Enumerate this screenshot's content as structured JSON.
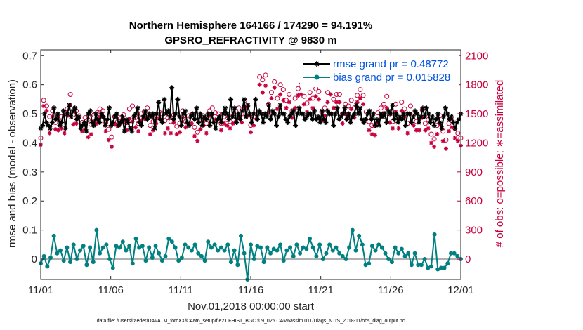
{
  "chart_data": {
    "type": "line",
    "title": "Northern Hemisphere 164166 / 174290 = 94.191%",
    "subtitle": "GPSRO_REFRACTIVITY @ 9830 m",
    "xlabel": "Nov.01,2018 00:00:00 start",
    "ylabel": "rmse and bias (model - observation)",
    "ylabel_right": "# of obs: o=possible; ∗=assimilated",
    "xlim": [
      0,
      30
    ],
    "ylim": [
      -0.07,
      0.72
    ],
    "ylim_right": [
      -210,
      2160
    ],
    "x_tick_values": [
      0,
      5,
      10,
      15,
      20,
      25,
      30
    ],
    "x_tick_labels": [
      "11/01",
      "11/06",
      "11/11",
      "11/16",
      "11/21",
      "11/26",
      "12/01"
    ],
    "y_ticks": [
      0,
      0.1,
      0.2,
      0.3,
      0.4,
      0.5,
      0.6,
      0.7
    ],
    "y_tick_labels": [
      "0",
      "0.1",
      "0.2",
      "0.3",
      "0.4",
      "0.5",
      "0.6",
      "0.7"
    ],
    "y_ticks_right": [
      0,
      300,
      600,
      900,
      1200,
      1500,
      1800,
      2100
    ],
    "y_tick_labels_right": [
      "0",
      "300",
      "600",
      "900",
      "1200",
      "1500",
      "1800",
      "2100"
    ],
    "footnote": "data file: /Users/raeder/DAI/ATM_forcXX/CAM6_setup/f.e21.FHIST_BGC.f09_025.CAM6assim.011/Diags_NTrS_2018-11/obs_diag_output.nc",
    "colors": {
      "rmse": "#000000",
      "bias": "#008080",
      "obs": "#c8003c",
      "zero_line": "#b0b0b0",
      "legend_text": "#0052e0"
    },
    "series": [
      {
        "name": "rmse grand pr = 0.48772",
        "axis": "left",
        "values": [
          0.45,
          0.46,
          0.5,
          0.47,
          0.46,
          0.45,
          0.47,
          0.52,
          0.48,
          0.5,
          0.46,
          0.47,
          0.51,
          0.45,
          0.5,
          0.53,
          0.49,
          0.51,
          0.52,
          0.48,
          0.49,
          0.45,
          0.46,
          0.47,
          0.44,
          0.5,
          0.51,
          0.47,
          0.46,
          0.5,
          0.48,
          0.47,
          0.5,
          0.49,
          0.46,
          0.48,
          0.52,
          0.46,
          0.47,
          0.49,
          0.5,
          0.46,
          0.47,
          0.49,
          0.44,
          0.48,
          0.47,
          0.45,
          0.44,
          0.49,
          0.5,
          0.52,
          0.47,
          0.46,
          0.49,
          0.51,
          0.48,
          0.5,
          0.49,
          0.5,
          0.45,
          0.5,
          0.54,
          0.48,
          0.47,
          0.55,
          0.5,
          0.51,
          0.49,
          0.59,
          0.48,
          0.5,
          0.55,
          0.49,
          0.46,
          0.5,
          0.51,
          0.47,
          0.46,
          0.49,
          0.5,
          0.48,
          0.52,
          0.47,
          0.5,
          0.46,
          0.49,
          0.48,
          0.5,
          0.46,
          0.5,
          0.47,
          0.45,
          0.48,
          0.49,
          0.47,
          0.5,
          0.52,
          0.5,
          0.48,
          0.55,
          0.49,
          0.52,
          0.47,
          0.5,
          0.48,
          0.51,
          0.55,
          0.49,
          0.53,
          0.5,
          0.47,
          0.5,
          0.55,
          0.48,
          0.51,
          0.5,
          0.47,
          0.5,
          0.49,
          0.53,
          0.48,
          0.51,
          0.5,
          0.46,
          0.49,
          0.53,
          0.5,
          0.5,
          0.48,
          0.47,
          0.49,
          0.5,
          0.51,
          0.46,
          0.5,
          0.52,
          0.5,
          0.5,
          0.48,
          0.49,
          0.5,
          0.5,
          0.48,
          0.51,
          0.48,
          0.49,
          0.47,
          0.51,
          0.48,
          0.47,
          0.51,
          0.5,
          0.5,
          0.46,
          0.5,
          0.52,
          0.48,
          0.49,
          0.5,
          0.52,
          0.48,
          0.5,
          0.47,
          0.49,
          0.5,
          0.53,
          0.5,
          0.52,
          0.48,
          0.47,
          0.48,
          0.5,
          0.51,
          0.48,
          0.5,
          0.46,
          0.48,
          0.46,
          0.5,
          0.49,
          0.5,
          0.47,
          0.51,
          0.5,
          0.53,
          0.48,
          0.5,
          0.47,
          0.49,
          0.48,
          0.5,
          0.46,
          0.5,
          0.5,
          0.47,
          0.49,
          0.51,
          0.5,
          0.47,
          0.49,
          0.52,
          0.49,
          0.52,
          0.5,
          0.47,
          0.49,
          0.46,
          0.48,
          0.5,
          0.47,
          0.45,
          0.49,
          0.52,
          0.5,
          0.48,
          0.49,
          0.47,
          0.45,
          0.47,
          0.48,
          0.5
        ]
      },
      {
        "name": "bias grand pr = 0.015828",
        "axis": "left",
        "values": [
          -0.015,
          0.01,
          -0.025,
          0.005,
          0.08,
          0.02,
          0.03,
          -0.005,
          0.04,
          -0.01,
          0.05,
          0.0,
          0.03,
          0.045,
          -0.02,
          0.04,
          -0.01,
          0.1,
          0.02,
          0.04,
          0.05,
          0.0,
          -0.03,
          0.045,
          0.04,
          0.06,
          0.03,
          0.045,
          -0.015,
          0.07,
          0.04,
          0.045,
          -0.005,
          0.04,
          0.005,
          0.045,
          0.02,
          -0.005,
          0.01,
          0.07,
          0.06,
          0.04,
          -0.005,
          0.005,
          0.05,
          0.04,
          0.03,
          0.05,
          0.02,
          0.01,
          -0.005,
          0.06,
          0.04,
          0.05,
          0.03,
          0.04,
          0.03,
          0.05,
          -0.01,
          0.03,
          -0.02,
          0.08,
          0.02,
          -0.07,
          0.05,
          0.0,
          0.045,
          0.04,
          -0.01,
          0.04,
          0.02,
          0.035,
          0.03,
          0.05,
          -0.005,
          0.03,
          0.04,
          0.01,
          0.05,
          0.02,
          0.04,
          0.035,
          0.07,
          0.04,
          0.01,
          0.05,
          0.0,
          0.02,
          0.05,
          0.03,
          0.04,
          0.02,
          0.01,
          0.0,
          0.04,
          0.1,
          0.03,
          0.08,
          0.05,
          -0.02,
          -0.015,
          0.045,
          0.03,
          0.05,
          0.04,
          0.02,
          0.0,
          -0.01,
          0.04,
          0.02,
          0.035,
          0.01,
          0.02,
          -0.02,
          0.02,
          -0.02,
          -0.02,
          0.0,
          -0.03,
          -0.025,
          0.085,
          -0.035,
          -0.03,
          -0.03,
          -0.015,
          0.02,
          0.02,
          0.01,
          0.0
        ]
      },
      {
        "name": "# of obs possible",
        "axis": "right",
        "marker": "o",
        "values": [
          1250,
          1640,
          1580,
          1470,
          1530,
          1410,
          1440,
          1470,
          1520,
          1550,
          1700,
          1490,
          1530,
          1480,
          1410,
          1460,
          1440,
          1390,
          1490,
          1510,
          1550,
          1530,
          1410,
          1340,
          1260,
          1470,
          1420,
          1460,
          1490,
          1410,
          1550,
          1580,
          1460,
          1400,
          1500,
          1520,
          1560,
          1380,
          1420,
          1480,
          1520,
          1500,
          1430,
          1460,
          1420,
          1490,
          1370,
          1400,
          1530,
          1420,
          1480,
          1490,
          1360,
          1310,
          1440,
          1480,
          1400,
          1530,
          1560,
          1510,
          1500,
          1400,
          1470,
          1440,
          1420,
          1480,
          1520,
          1560,
          1500,
          1640,
          1580,
          1380,
          1470,
          1500,
          1880,
          1850,
          1900,
          1600,
          1720,
          1830,
          1660,
          1800,
          1750,
          1640,
          1700,
          1530,
          1660,
          1760,
          1800,
          1680,
          1610,
          1720,
          1660,
          1760,
          1730,
          1520,
          1560,
          1720,
          1800,
          1650,
          1700,
          1700,
          1500,
          1600,
          1580,
          1640,
          1560,
          1690,
          1750,
          1690,
          1520,
          1420,
          1380,
          1380,
          1510,
          1560,
          1600,
          1680,
          1500,
          1420,
          1600,
          1450,
          1620,
          1550,
          1400,
          1580,
          1500,
          1420,
          1450,
          1540,
          1400,
          1440,
          1290,
          1240,
          1380,
          1480,
          1320,
          1230,
          1400,
          1450,
          1350,
          1300,
          1250
        ]
      },
      {
        "name": "# of obs assimilated",
        "axis": "right",
        "marker": "*",
        "values": [
          1180,
          1580,
          1530,
          1300,
          1470,
          1340,
          1330,
          1350,
          1300,
          1480,
          1590,
          1390,
          1400,
          1460,
          1320,
          1340,
          1260,
          1290,
          1420,
          1400,
          1470,
          1470,
          1320,
          1230,
          1160,
          1390,
          1370,
          1400,
          1430,
          1330,
          1450,
          1420,
          1360,
          1320,
          1430,
          1450,
          1460,
          1290,
          1330,
          1400,
          1450,
          1440,
          1300,
          1350,
          1300,
          1410,
          1290,
          1310,
          1460,
          1360,
          1390,
          1400,
          1270,
          1220,
          1340,
          1380,
          1300,
          1480,
          1500,
          1440,
          1440,
          1330,
          1400,
          1380,
          1350,
          1400,
          1420,
          1460,
          1410,
          1560,
          1480,
          1310,
          1380,
          1440,
          1800,
          1720,
          1790,
          1510,
          1660,
          1770,
          1550,
          1700,
          1640,
          1560,
          1620,
          1460,
          1560,
          1690,
          1700,
          1600,
          1520,
          1650,
          1560,
          1680,
          1650,
          1430,
          1480,
          1620,
          1700,
          1560,
          1620,
          1620,
          1400,
          1500,
          1470,
          1550,
          1460,
          1620,
          1660,
          1600,
          1440,
          1330,
          1290,
          1280,
          1410,
          1470,
          1510,
          1560,
          1410,
          1350,
          1520,
          1350,
          1530,
          1470,
          1300,
          1500,
          1380,
          1330,
          1330,
          1460,
          1330,
          1350,
          1200,
          1160,
          1290,
          1390,
          1220,
          1140,
          1320,
          1360,
          1250,
          1220,
          1170
        ]
      }
    ]
  }
}
